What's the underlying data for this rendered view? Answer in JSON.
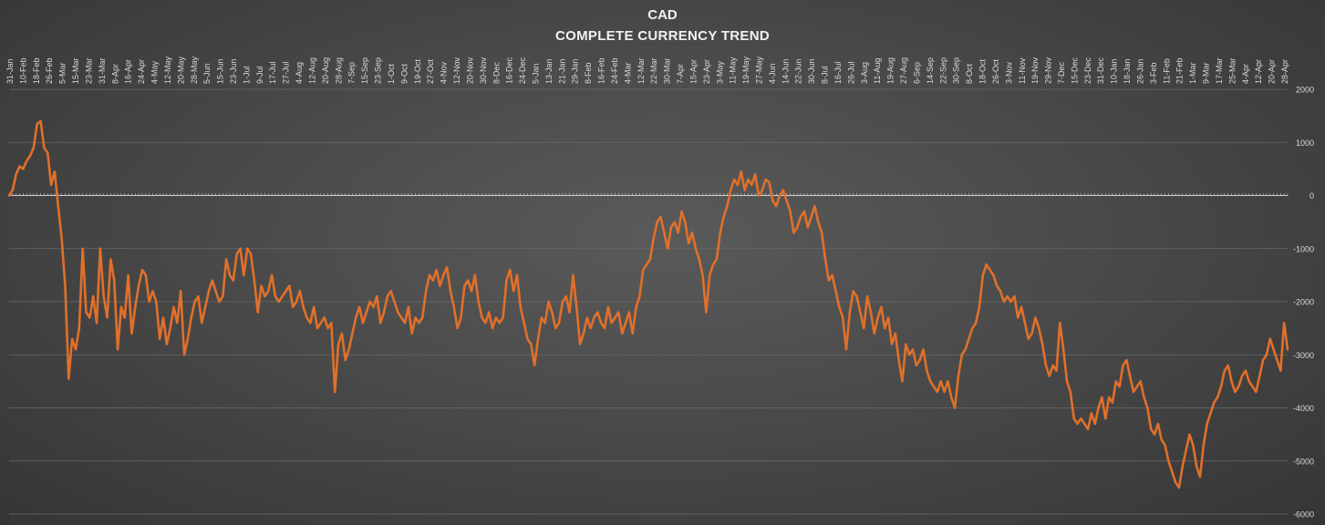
{
  "chart_data": {
    "type": "line",
    "title": "CAD",
    "subtitle": "COMPLETE CURRENCY TREND",
    "xlabel": "",
    "ylabel": "",
    "ylim": [
      -6000,
      2000
    ],
    "y_ticks": [
      2000,
      1000,
      0,
      -1000,
      -2000,
      -3000,
      -4000,
      -5000,
      -6000
    ],
    "grid": true,
    "legend": "none",
    "colors": {
      "line": "#e0702a",
      "grid": "#6a6a6a",
      "zero_axis": "#cfcfcf",
      "text": "#d9d9d9"
    },
    "x_tick_labels": [
      "31-Jan",
      "10-Feb",
      "18-Feb",
      "26-Feb",
      "5-Mar",
      "15-Mar",
      "23-Mar",
      "31-Mar",
      "8-Apr",
      "16-Apr",
      "24-Apr",
      "4-May",
      "12-May",
      "20-May",
      "28-May",
      "5-Jun",
      "15-Jun",
      "23-Jun",
      "1-Jul",
      "9-Jul",
      "17-Jul",
      "27-Jul",
      "4-Aug",
      "12-Aug",
      "20-Aug",
      "28-Aug",
      "7-Sep",
      "15-Sep",
      "23-Sep",
      "1-Oct",
      "9-Oct",
      "19-Oct",
      "27-Oct",
      "4-Nov",
      "12-Nov",
      "20-Nov",
      "30-Nov",
      "8-Dec",
      "16-Dec",
      "24-Dec",
      "5-Jan",
      "13-Jan",
      "21-Jan",
      "29-Jan",
      "8-Feb",
      "16-Feb",
      "24-Feb",
      "4-Mar",
      "12-Mar",
      "22-Mar",
      "30-Mar",
      "7-Apr",
      "15-Apr",
      "23-Apr",
      "3-May",
      "11-May",
      "19-May",
      "27-May",
      "4-Jun",
      "14-Jun",
      "22-Jun",
      "30-Jun",
      "8-Jul",
      "16-Jul",
      "26-Jul",
      "3-Aug",
      "11-Aug",
      "19-Aug",
      "27-Aug",
      "6-Sep",
      "14-Sep",
      "22-Sep",
      "30-Sep",
      "8-Oct",
      "18-Oct",
      "26-Oct",
      "3-Nov",
      "11-Nov",
      "19-Nov",
      "29-Nov",
      "7-Dec",
      "15-Dec",
      "23-Dec",
      "31-Dec",
      "10-Jan",
      "18-Jan",
      "26-Jan",
      "3-Feb",
      "11-Feb",
      "21-Feb",
      "1-Mar",
      "9-Mar",
      "17-Mar",
      "25-Mar",
      "4-Apr",
      "12-Apr",
      "20-Apr",
      "28-Apr"
    ],
    "series": [
      {
        "values": [
          0,
          100,
          400,
          550,
          500,
          650,
          750,
          900,
          1350,
          1400,
          900,
          800,
          200,
          450,
          -200,
          -800,
          -1700,
          -3450,
          -2700,
          -2900,
          -2500,
          -1000,
          -2200,
          -2300,
          -1900,
          -2400,
          -1000,
          -1900,
          -2300,
          -1200,
          -1600,
          -2900,
          -2100,
          -2300,
          -1500,
          -2600,
          -2100,
          -1700,
          -1400,
          -1500,
          -2000,
          -1800,
          -2000,
          -2700,
          -2300,
          -2800,
          -2500,
          -2100,
          -2400,
          -1800,
          -3000,
          -2700,
          -2300,
          -2000,
          -1900,
          -2400,
          -2100,
          -1800,
          -1600,
          -1800,
          -2000,
          -1900,
          -1200,
          -1500,
          -1600,
          -1100,
          -1000,
          -1500,
          -1000,
          -1100,
          -1600,
          -2200,
          -1700,
          -1900,
          -1800,
          -1500,
          -1900,
          -2000,
          -1900,
          -1800,
          -1700,
          -2100,
          -2000,
          -1800,
          -2100,
          -2300,
          -2400,
          -2100,
          -2500,
          -2400,
          -2300,
          -2500,
          -2400,
          -3700,
          -2800,
          -2600,
          -3100,
          -2900,
          -2600,
          -2300,
          -2100,
          -2400,
          -2200,
          -2000,
          -2100,
          -1900,
          -2400,
          -2200,
          -1900,
          -1800,
          -2000,
          -2200,
          -2300,
          -2400,
          -2100,
          -2600,
          -2300,
          -2400,
          -2300,
          -1800,
          -1500,
          -1600,
          -1400,
          -1700,
          -1500,
          -1350,
          -1800,
          -2100,
          -2500,
          -2300,
          -1700,
          -1600,
          -1800,
          -1500,
          -2000,
          -2300,
          -2400,
          -2200,
          -2500,
          -2300,
          -2400,
          -2300,
          -1600,
          -1400,
          -1800,
          -1500,
          -2100,
          -2400,
          -2700,
          -2800,
          -3200,
          -2700,
          -2300,
          -2400,
          -2000,
          -2200,
          -2500,
          -2400,
          -2000,
          -1900,
          -2200,
          -1500,
          -2100,
          -2800,
          -2600,
          -2300,
          -2500,
          -2300,
          -2200,
          -2400,
          -2500,
          -2100,
          -2400,
          -2300,
          -2200,
          -2600,
          -2400,
          -2200,
          -2600,
          -2100,
          -1900,
          -1400,
          -1300,
          -1200,
          -800,
          -500,
          -400,
          -700,
          -1000,
          -600,
          -500,
          -700,
          -300,
          -500,
          -900,
          -700,
          -1000,
          -1200,
          -1500,
          -2200,
          -1500,
          -1300,
          -1200,
          -700,
          -400,
          -200,
          100,
          300,
          200,
          450,
          100,
          300,
          200,
          400,
          0,
          100,
          300,
          250,
          -100,
          -200,
          0,
          100,
          -100,
          -300,
          -700,
          -600,
          -400,
          -300,
          -600,
          -400,
          -200,
          -500,
          -700,
          -1200,
          -1600,
          -1500,
          -1800,
          -2100,
          -2300,
          -2900,
          -2200,
          -1800,
          -1900,
          -2200,
          -2500,
          -1900,
          -2200,
          -2600,
          -2300,
          -2100,
          -2500,
          -2300,
          -2800,
          -2600,
          -3100,
          -3500,
          -2800,
          -3000,
          -2900,
          -3200,
          -3100,
          -2900,
          -3300,
          -3500,
          -3600,
          -3700,
          -3500,
          -3700,
          -3500,
          -3800,
          -4000,
          -3400,
          -3000,
          -2900,
          -2700,
          -2500,
          -2400,
          -2100,
          -1500,
          -1300,
          -1400,
          -1500,
          -1700,
          -1800,
          -2000,
          -1900,
          -2000,
          -1900,
          -2300,
          -2100,
          -2400,
          -2700,
          -2600,
          -2300,
          -2500,
          -2800,
          -3200,
          -3400,
          -3200,
          -3300,
          -2400,
          -2900,
          -3500,
          -3700,
          -4200,
          -4300,
          -4200,
          -4300,
          -4400,
          -4100,
          -4300,
          -4000,
          -3800,
          -4200,
          -3800,
          -3900,
          -3500,
          -3600,
          -3200,
          -3100,
          -3400,
          -3700,
          -3600,
          -3500,
          -3800,
          -4000,
          -4400,
          -4500,
          -4300,
          -4600,
          -4700,
          -5000,
          -5200,
          -5400,
          -5500,
          -5100,
          -4800,
          -4500,
          -4700,
          -5100,
          -5300,
          -4700,
          -4300,
          -4100,
          -3900,
          -3800,
          -3600,
          -3300,
          -3200,
          -3500,
          -3700,
          -3600,
          -3400,
          -3300,
          -3500,
          -3600,
          -3700,
          -3400,
          -3100,
          -3000,
          -2700,
          -2900,
          -3100,
          -3300,
          -2400,
          -2900
        ]
      }
    ]
  }
}
